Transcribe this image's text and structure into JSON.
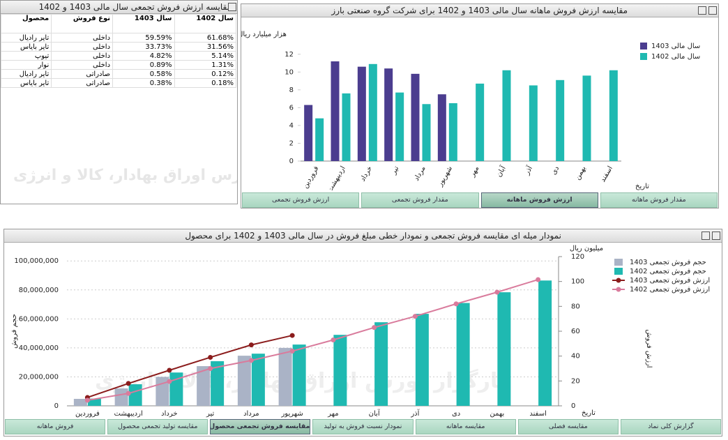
{
  "table_panel": {
    "title": "مقایسه ارزش فروش تجمعی سال مالی 1403 و 1402",
    "header": [
      "محصول",
      "نوع فروش",
      "سال 1403",
      "سال 1402"
    ],
    "rows": [
      [
        "تایر رادیال",
        "داخلی",
        "59.59%",
        "61.68%"
      ],
      [
        "تایر بایاس",
        "داخلی",
        "33.73%",
        "31.56%"
      ],
      [
        "تیوپ",
        "داخلی",
        "4.82%",
        "5.14%"
      ],
      [
        "نوار",
        "داخلی",
        "0.89%",
        "1.31%"
      ],
      [
        "تایر رادیال",
        "صادراتی",
        "0.58%",
        "0.12%"
      ],
      [
        "تایر بایاس",
        "صادراتی",
        "0.38%",
        "0.18%"
      ]
    ]
  },
  "watermark": "کارگزار بورس اوراق بهادار، کالا و انرژی",
  "tabs_top": {
    "items": [
      "مقدار فروش ماهانه",
      "ارزش فروش ماهانه",
      "مقدار فروش تجمعی",
      "ارزش فروش تجمعی"
    ],
    "active": 1
  },
  "tabs_bottom": {
    "items": [
      "گزارش کلی نماد",
      "مقایسه فصلی",
      "مقایسه ماهانه",
      "نمودار نسبت فروش به تولید",
      "مقایسه فروش تجمعی محصول",
      "مقایسه تولید تجمعی محصول",
      "فروش ماهانه"
    ],
    "active": 4
  },
  "chart_data": [
    {
      "type": "bar",
      "title": "مقایسه ارزش فروش ماهانه سال مالی 1403 و 1402 برای شرکت گروه صنعتی بارز",
      "y_label": "هزار میلیارد ریال",
      "x_label": "تاریخ",
      "categories": [
        "فروردین",
        "اردیبهشت",
        "خرداد",
        "تیر",
        "مرداد",
        "شهریور",
        "مهر",
        "آبان",
        "آذر",
        "دی",
        "بهمن",
        "اسفند"
      ],
      "ylim": [
        0,
        13
      ],
      "yticks": [
        0,
        2,
        4,
        6,
        8,
        10,
        12
      ],
      "grid": false,
      "legend": "top-right",
      "series": [
        {
          "name": "سال مالی 1403",
          "color": "#4b3d8f",
          "values": [
            6.3,
            11.2,
            10.6,
            10.4,
            9.8,
            7.5,
            null,
            null,
            null,
            null,
            null,
            null
          ]
        },
        {
          "name": "سال مالی 1402",
          "color": "#1fb9b1",
          "values": [
            4.8,
            7.6,
            10.9,
            7.7,
            6.4,
            6.5,
            8.7,
            10.2,
            8.5,
            9.1,
            9.6,
            10.2
          ]
        }
      ]
    },
    {
      "type": "combo",
      "title": "نمودار میله ای مقایسه فروش تجمعی و نمودار خطی مبلغ فروش در سال مالی 1403 و 1402 برای محصول",
      "y_label": "حجم فروش",
      "y2_label": "ارزش فروش",
      "y2_unit": "میلیون ریال",
      "x_label": "تاریخ",
      "categories": [
        "فروردین",
        "اردیبهشت",
        "خرداد",
        "تیر",
        "مرداد",
        "شهریور",
        "مهر",
        "آبان",
        "آذر",
        "دی",
        "بهمن",
        "اسفند"
      ],
      "ylim": [
        0,
        103000000
      ],
      "yticks": [
        0,
        {
          "value": 20000000,
          "label": "20,000,000"
        },
        {
          "value": 40000000,
          "label": "40,000,000"
        },
        {
          "value": 60000000,
          "label": "60,000,000"
        },
        {
          "value": 80000000,
          "label": "80,000,000"
        },
        {
          "value": 100000000,
          "label": "100,000,000"
        }
      ],
      "y2lim": [
        0,
        120
      ],
      "y2ticks": [
        0,
        20,
        40,
        60,
        80,
        100,
        120
      ],
      "grid": true,
      "legend": "top-right",
      "series": [
        {
          "name": "حجم فروش تجمعی 1403",
          "type": "bar",
          "color": "#aab3c6",
          "values": [
            4800000,
            12000000,
            20000000,
            27400000,
            34600000,
            40000000,
            null,
            null,
            null,
            null,
            null,
            null
          ]
        },
        {
          "name": "حجم فروش تجمعی 1402",
          "type": "bar",
          "color": "#1fb9b1",
          "values": [
            5000000,
            14900000,
            23000000,
            30800000,
            36000000,
            42300000,
            49000000,
            57700000,
            63500000,
            71000000,
            78400000,
            86500000
          ]
        },
        {
          "name": "ارزش فروش تجمعی 1403",
          "type": "line",
          "axis": "y2",
          "color": "#8b1c1c",
          "values": [
            6.7,
            18,
            28.6,
            39,
            49,
            56.6,
            null,
            null,
            null,
            null,
            null,
            null
          ]
        },
        {
          "name": "ارزش فروش تجمعی 1402",
          "type": "line",
          "axis": "y2",
          "color": "#d97b9c",
          "values": [
            4.5,
            10,
            19.6,
            30,
            36.5,
            44,
            53,
            63,
            72,
            82,
            91.4,
            101.5
          ]
        }
      ]
    }
  ]
}
